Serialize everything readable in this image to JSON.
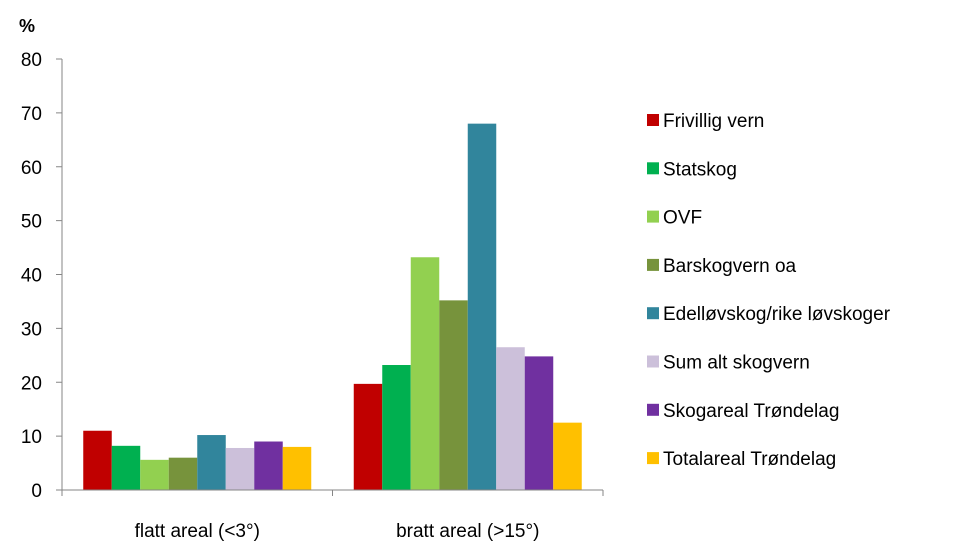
{
  "chart_data": {
    "type": "bar",
    "ylabel": "%",
    "ylim": [
      0,
      80
    ],
    "yticks": [
      0,
      10,
      20,
      30,
      40,
      50,
      60,
      70,
      80
    ],
    "categories": [
      "flatt areal (<3°)",
      "bratt areal (>15°)"
    ],
    "legend_position": "right",
    "grid": false,
    "series": [
      {
        "name": "Frivillig vern",
        "color": "#C00000",
        "values": [
          11.0,
          19.7
        ]
      },
      {
        "name": "Statskog",
        "color": "#00B050",
        "values": [
          8.2,
          23.2
        ]
      },
      {
        "name": "OVF",
        "color": "#92D050",
        "values": [
          5.6,
          43.2
        ]
      },
      {
        "name": "Barskogvern oa",
        "color": "#77933C",
        "values": [
          6.0,
          35.2
        ]
      },
      {
        "name": "Edelløvskog/rike løvskoger",
        "color": "#31859C",
        "values": [
          10.2,
          68.0
        ]
      },
      {
        "name": "Sum alt skogvern",
        "color": "#CCC0DA",
        "values": [
          7.8,
          26.5
        ]
      },
      {
        "name": "Skogareal Trøndelag",
        "color": "#7030A0",
        "values": [
          9.0,
          24.8
        ]
      },
      {
        "name": "Totalareal Trøndelag",
        "color": "#FFC000",
        "values": [
          8.0,
          12.5
        ]
      }
    ]
  }
}
